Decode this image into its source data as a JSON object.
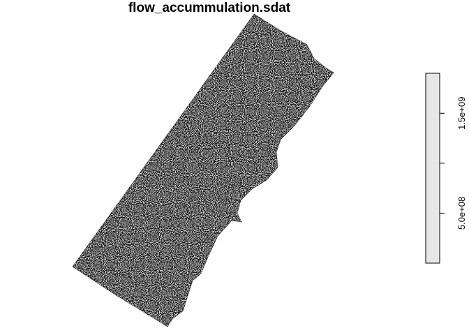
{
  "title": "flow_accummulation.sdat",
  "legend": {
    "fill_color": "#e6e6e6",
    "tick_labels": [
      "1.5e+09",
      "5.0e+08"
    ],
    "tick_values": [
      1500000000,
      500000000
    ],
    "value_range": [
      0,
      1900000000
    ]
  },
  "raster": {
    "colors": {
      "dark": "#111111",
      "light": "#d8d8d8",
      "outline": "#000000"
    }
  }
}
